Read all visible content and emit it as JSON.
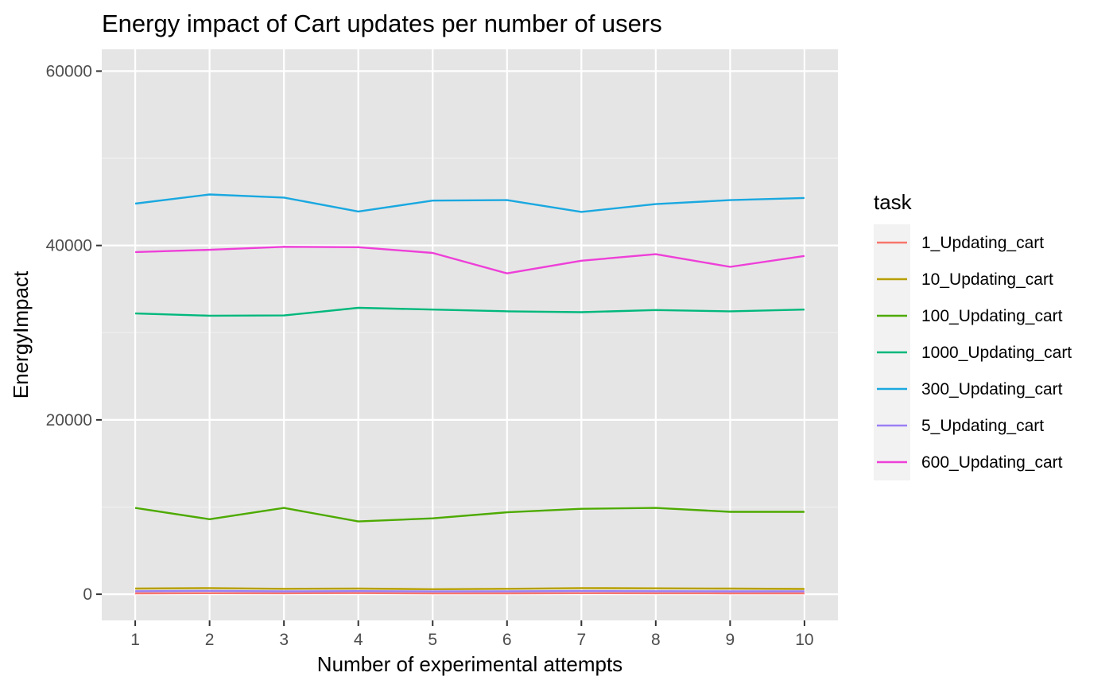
{
  "chart_data": {
    "type": "line",
    "title": "Energy impact of Cart updates per number of users",
    "xlabel": "Number of experimental attempts",
    "ylabel": "EnergyImpact",
    "x": [
      1,
      2,
      3,
      4,
      5,
      6,
      7,
      8,
      9,
      10
    ],
    "xlim": [
      0.55,
      10.45
    ],
    "ylim": [
      -3000,
      62500
    ],
    "yticks": [
      0,
      20000,
      40000,
      60000
    ],
    "ytick_labels": [
      "0",
      "20000",
      "40000",
      "60000"
    ],
    "xtick_labels": [
      "1",
      "2",
      "3",
      "4",
      "5",
      "6",
      "7",
      "8",
      "9",
      "10"
    ],
    "grid": true,
    "panel_background": "#e5e5e5",
    "legend": {
      "title": "task",
      "position": "right"
    },
    "series": [
      {
        "name": "1_Updating_cart",
        "color": "#F8766D",
        "values": [
          100,
          120,
          110,
          130,
          90,
          100,
          120,
          110,
          100,
          100
        ]
      },
      {
        "name": "10_Updating_cart",
        "color": "#B79F00",
        "values": [
          650,
          700,
          620,
          650,
          580,
          620,
          700,
          680,
          650,
          600
        ]
      },
      {
        "name": "100_Updating_cart",
        "color": "#4DAA00",
        "values": [
          9900,
          8600,
          9900,
          8350,
          8700,
          9400,
          9800,
          9900,
          9450,
          9450
        ]
      },
      {
        "name": "1000_Updating_cart",
        "color": "#00B87C",
        "values": [
          32200,
          31950,
          31980,
          32850,
          32650,
          32450,
          32350,
          32600,
          32450,
          32650
        ]
      },
      {
        "name": "300_Updating_cart",
        "color": "#1AA8E0",
        "values": [
          44800,
          45850,
          45500,
          43900,
          45150,
          45200,
          43850,
          44750,
          45200,
          45450
        ]
      },
      {
        "name": "5_Updating_cart",
        "color": "#9B7FF5",
        "values": [
          350,
          380,
          330,
          360,
          320,
          340,
          370,
          350,
          330,
          340
        ]
      },
      {
        "name": "600_Updating_cart",
        "color": "#EE3FD8",
        "values": [
          39250,
          39500,
          39850,
          39800,
          39150,
          36800,
          38250,
          39000,
          37550,
          38800
        ]
      }
    ]
  }
}
